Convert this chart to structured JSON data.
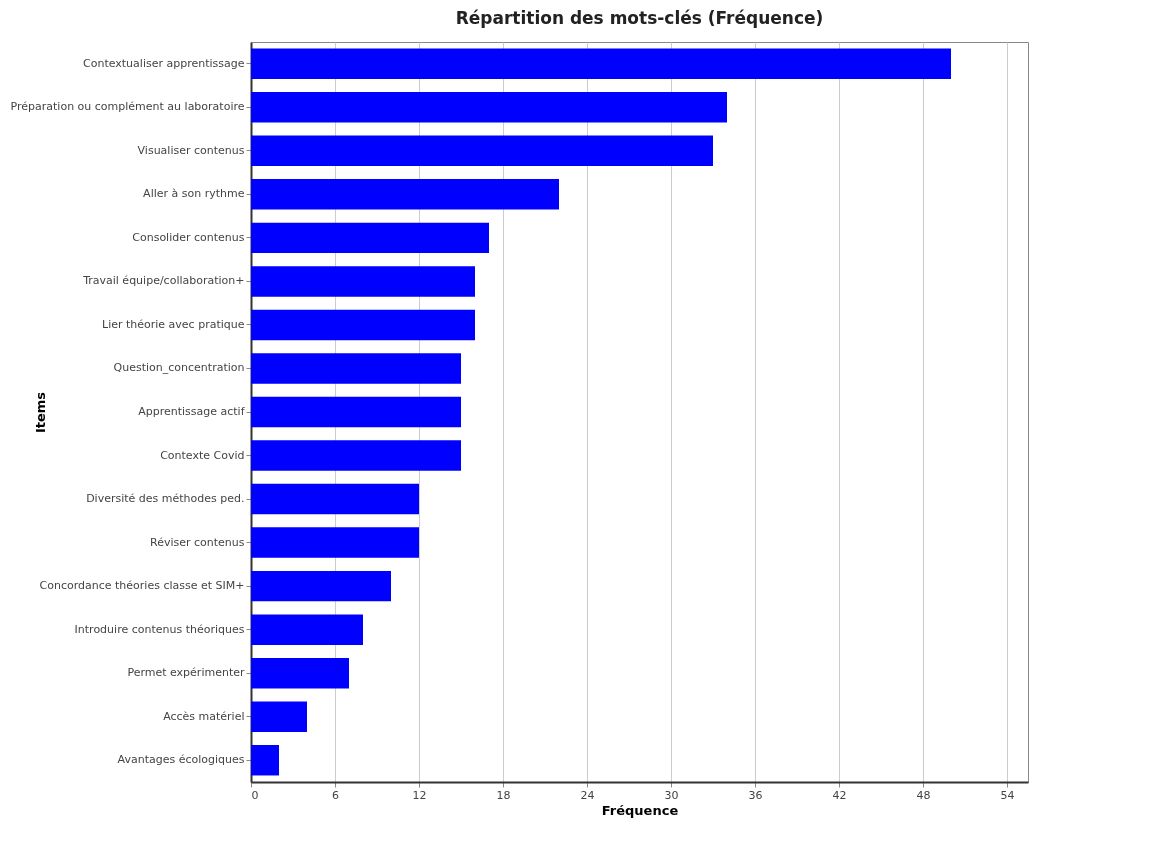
{
  "chart_data": {
    "type": "bar",
    "orientation": "horizontal",
    "title": "Répartition des mots-clés (Fréquence)",
    "xlabel": "Fréquence",
    "ylabel": "Items",
    "categories": [
      "Contextualiser apprentissage",
      "Préparation ou complément au laboratoire",
      "Visualiser contenus",
      "Aller à son rythme",
      "Consolider contenus",
      "Travail équipe/collaboration+",
      "Lier théorie avec pratique",
      "Question_concentration",
      "Apprentissage actif",
      "Contexte Covid",
      "Diversité des méthodes ped.",
      "Réviser contenus",
      "Concordance théories classe et SIM+",
      "Introduire contenus théoriques",
      "Permet expérimenter",
      "Accès matériel",
      "Avantages écologiques"
    ],
    "values": [
      50,
      34,
      33,
      22,
      17,
      16,
      16,
      15,
      15,
      15,
      12,
      12,
      10,
      8,
      7,
      4,
      2
    ],
    "color": "#0000ff",
    "xlim": [
      0,
      55.5
    ],
    "xticks": [
      0,
      6,
      12,
      18,
      24,
      30,
      36,
      42,
      48,
      54
    ],
    "grid": "x"
  }
}
